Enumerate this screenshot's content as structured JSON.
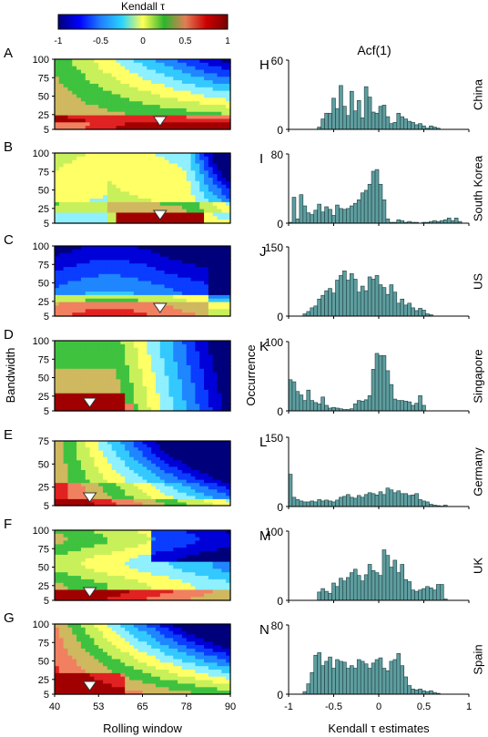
{
  "figure": {
    "colorbar": {
      "title": "Kendall τ",
      "ticks": [
        "-1",
        "-0.5",
        "0",
        "0.5",
        "1"
      ],
      "colors": [
        "#00007a",
        "#0000ff",
        "#1f7fff",
        "#29d3ff",
        "#ffff55",
        "#2db52d",
        "#e07e57",
        "#cc0000",
        "#7a0000"
      ]
    },
    "left_panels_common": {
      "ylabel": "Bandwidth",
      "xlabel": "Rolling window",
      "xticks": [
        "40",
        "53",
        "65",
        "78",
        "90"
      ],
      "marker": "white downward triangle"
    },
    "right_panels_common": {
      "title": "Acf(1)",
      "ylabel": "Occurrence",
      "xlabel": "Kendall τ estimates",
      "xticks": [
        "-1",
        "-0.5",
        "0",
        "0.5",
        "1"
      ],
      "bar_color": "#5f9ea0"
    }
  },
  "chart_data": [
    {
      "type": "heatmap",
      "letter": "A",
      "country": "China",
      "yticks": [
        "100",
        "75",
        "50",
        "25",
        "5"
      ],
      "ylim": [
        5,
        100
      ],
      "xlim": [
        40,
        90
      ],
      "marker": {
        "window": 70,
        "bandwidth": 5
      }
    },
    {
      "type": "heatmap",
      "letter": "B",
      "country": "South Korea",
      "yticks": [
        "100",
        "75",
        "50",
        "25",
        "5"
      ],
      "ylim": [
        5,
        100
      ],
      "xlim": [
        40,
        90
      ],
      "marker": {
        "window": 70,
        "bandwidth": 5
      }
    },
    {
      "type": "heatmap",
      "letter": "C",
      "country": "US",
      "yticks": [
        "100",
        "75",
        "50",
        "25",
        "5"
      ],
      "ylim": [
        5,
        100
      ],
      "xlim": [
        40,
        90
      ],
      "marker": {
        "window": 70,
        "bandwidth": 5
      }
    },
    {
      "type": "heatmap",
      "letter": "D",
      "country": "Singapore",
      "yticks": [
        "100",
        "75",
        "50",
        "25",
        "5"
      ],
      "ylim": [
        5,
        100
      ],
      "xlim": [
        40,
        90
      ],
      "marker": {
        "window": 50,
        "bandwidth": 5
      }
    },
    {
      "type": "heatmap",
      "letter": "E",
      "country": "Germany",
      "yticks": [
        "75",
        "50",
        "25",
        "5"
      ],
      "ylim": [
        5,
        75
      ],
      "xlim": [
        40,
        90
      ],
      "marker": {
        "window": 50,
        "bandwidth": 5
      }
    },
    {
      "type": "heatmap",
      "letter": "F",
      "country": "UK",
      "yticks": [
        "100",
        "75",
        "50",
        "25",
        "5"
      ],
      "ylim": [
        5,
        100
      ],
      "xlim": [
        40,
        90
      ],
      "marker": {
        "window": 50,
        "bandwidth": 5
      }
    },
    {
      "type": "heatmap",
      "letter": "G",
      "country": "Spain",
      "yticks": [
        "100",
        "75",
        "50",
        "25",
        "5"
      ],
      "ylim": [
        5,
        100
      ],
      "xlim": [
        40,
        90
      ],
      "marker": {
        "window": 50,
        "bandwidth": 5
      }
    },
    {
      "type": "bar",
      "letter": "H",
      "country": "China",
      "ylim": [
        0,
        60
      ],
      "yticks": [
        "60",
        "0"
      ],
      "xlim": [
        -1,
        1
      ],
      "values": [
        0,
        0,
        0,
        0,
        0,
        0,
        0,
        0,
        2,
        9,
        14,
        14,
        27,
        18,
        38,
        20,
        12,
        33,
        16,
        25,
        10,
        37,
        28,
        15,
        14,
        20,
        21,
        11,
        5,
        6,
        14,
        11,
        9,
        7,
        6,
        4,
        5,
        3,
        1,
        3,
        2,
        1,
        0,
        0,
        0,
        0,
        0,
        0,
        0,
        0
      ]
    },
    {
      "type": "bar",
      "letter": "I",
      "country": "South Korea",
      "ylim": [
        0,
        80
      ],
      "yticks": [
        "80",
        "0"
      ],
      "xlim": [
        -1,
        1
      ],
      "values": [
        1,
        30,
        5,
        33,
        20,
        12,
        10,
        15,
        22,
        13,
        19,
        16,
        9,
        21,
        17,
        16,
        17,
        20,
        23,
        27,
        35,
        38,
        45,
        60,
        62,
        45,
        27,
        5,
        1,
        1,
        4,
        3,
        1,
        2,
        1,
        1,
        0,
        1,
        1,
        2,
        3,
        2,
        3,
        4,
        6,
        3,
        6,
        2,
        0,
        0
      ]
    },
    {
      "type": "bar",
      "letter": "J",
      "country": "US",
      "ylim": [
        0,
        150
      ],
      "yticks": [
        "150",
        "0"
      ],
      "xlim": [
        -1,
        1
      ],
      "values": [
        0,
        0,
        0,
        0,
        5,
        10,
        18,
        22,
        37,
        45,
        55,
        60,
        50,
        78,
        88,
        98,
        78,
        92,
        80,
        52,
        65,
        55,
        85,
        80,
        88,
        68,
        62,
        47,
        68,
        52,
        28,
        37,
        24,
        28,
        18,
        12,
        17,
        13,
        5,
        3,
        0,
        0,
        0,
        0,
        0,
        0,
        0,
        0,
        0,
        0
      ]
    },
    {
      "type": "bar",
      "letter": "K",
      "country": "Singapore",
      "ylim": [
        0,
        100
      ],
      "yticks": [
        "100",
        "0"
      ],
      "xlim": [
        -1,
        1
      ],
      "values": [
        45,
        42,
        28,
        23,
        15,
        30,
        15,
        12,
        10,
        20,
        8,
        4,
        5,
        4,
        3,
        2,
        2,
        3,
        10,
        15,
        14,
        16,
        22,
        60,
        83,
        80,
        80,
        58,
        38,
        17,
        15,
        15,
        14,
        13,
        8,
        11,
        22,
        8,
        0,
        0,
        0,
        0,
        0,
        0,
        0,
        0,
        0,
        0,
        0,
        0
      ]
    },
    {
      "type": "bar",
      "letter": "L",
      "country": "Germany",
      "ylim": [
        0,
        150
      ],
      "yticks": [
        "150",
        "0"
      ],
      "xlim": [
        -1,
        1
      ],
      "values": [
        70,
        20,
        15,
        12,
        10,
        10,
        12,
        10,
        15,
        12,
        14,
        12,
        10,
        14,
        20,
        22,
        26,
        20,
        18,
        24,
        20,
        26,
        30,
        28,
        25,
        32,
        26,
        40,
        36,
        30,
        34,
        28,
        28,
        24,
        25,
        28,
        15,
        12,
        10,
        5,
        3,
        2,
        1,
        3,
        0,
        0,
        0,
        0,
        0,
        0
      ]
    },
    {
      "type": "bar",
      "letter": "M",
      "country": "UK",
      "ylim": [
        0,
        100
      ],
      "yticks": [
        "100",
        "0"
      ],
      "xlim": [
        -1,
        1
      ],
      "values": [
        0,
        0,
        0,
        0,
        0,
        0,
        0,
        0,
        12,
        17,
        13,
        10,
        25,
        20,
        32,
        28,
        33,
        40,
        45,
        36,
        28,
        37,
        52,
        43,
        40,
        36,
        73,
        65,
        48,
        58,
        40,
        52,
        30,
        27,
        15,
        13,
        15,
        17,
        20,
        18,
        15,
        23,
        23,
        2,
        0,
        0,
        0,
        0,
        0,
        0
      ]
    },
    {
      "type": "bar",
      "letter": "N",
      "country": "Spain",
      "ylim": [
        0,
        80
      ],
      "yticks": [
        "80",
        "0"
      ],
      "xlim": [
        -1,
        1
      ],
      "values": [
        0,
        0,
        0,
        0,
        3,
        12,
        25,
        45,
        48,
        33,
        38,
        43,
        30,
        40,
        38,
        37,
        30,
        33,
        30,
        40,
        38,
        35,
        30,
        36,
        40,
        42,
        30,
        27,
        38,
        40,
        47,
        33,
        20,
        10,
        6,
        5,
        6,
        4,
        3,
        4,
        2,
        1,
        0,
        0,
        0,
        0,
        0,
        0,
        0,
        0
      ]
    }
  ]
}
